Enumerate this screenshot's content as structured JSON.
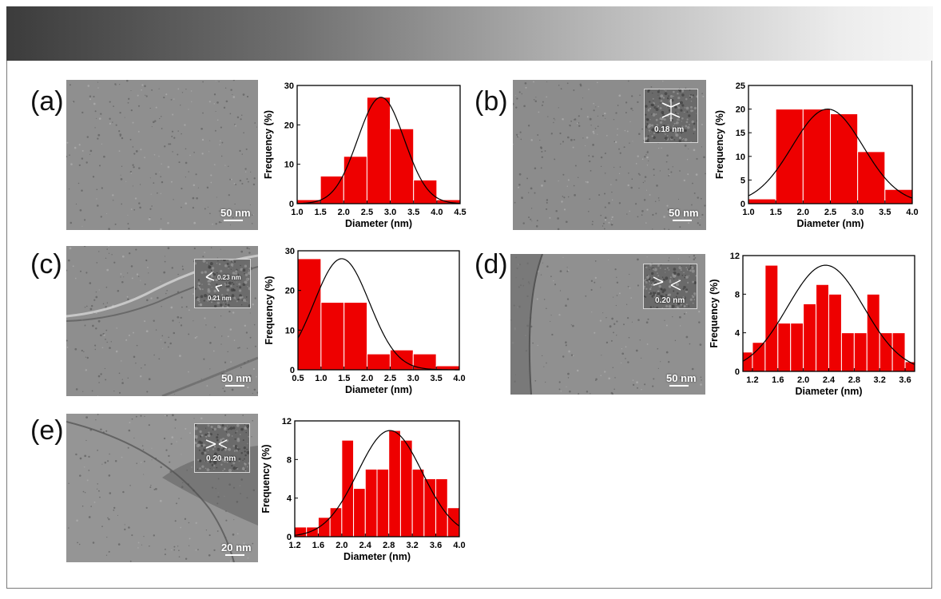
{
  "figure": {
    "panels": [
      {
        "label": "(a)",
        "micrograph": {
          "scale_text": "50 nm",
          "inset": null
        }
      },
      {
        "label": "(b)",
        "micrograph": {
          "scale_text": "50 nm",
          "inset": {
            "texts": [
              "0.18 nm"
            ]
          }
        }
      },
      {
        "label": "(c)",
        "micrograph": {
          "scale_text": "50 nm",
          "inset": {
            "texts": [
              "0.23 nm",
              "0.21 nm"
            ]
          }
        }
      },
      {
        "label": "(d)",
        "micrograph": {
          "scale_text": "50 nm",
          "inset": {
            "texts": [
              "0.20 nm"
            ]
          }
        }
      },
      {
        "label": "(e)",
        "micrograph": {
          "scale_text": "20 nm",
          "inset": {
            "texts": [
              "0.20 nm"
            ]
          }
        }
      }
    ]
  },
  "chart_data": [
    {
      "type": "bar",
      "panel": "(a)",
      "xlabel": "Diameter (nm)",
      "ylabel": "Frequency (%)",
      "xlim": [
        1.0,
        4.5
      ],
      "ylim": [
        0,
        30
      ],
      "xticks": [
        "1.0",
        "1.5",
        "2.0",
        "2.5",
        "3.0",
        "3.5",
        "4.0",
        "4.5"
      ],
      "yticks": [
        "0",
        "10",
        "20",
        "30"
      ],
      "bin_width": 0.5,
      "x": [
        1.25,
        1.75,
        2.25,
        2.75,
        3.25,
        3.75,
        4.25
      ],
      "values": [
        1,
        7,
        12,
        27,
        19,
        6,
        1
      ],
      "fit": {
        "type": "gaussian",
        "center": 2.8,
        "sigma": 0.5,
        "peak": 27
      }
    },
    {
      "type": "bar",
      "panel": "(b)",
      "xlabel": "Diameter (nm)",
      "ylabel": "Frequency (%)",
      "xlim": [
        1.0,
        4.0
      ],
      "ylim": [
        0,
        25
      ],
      "xticks": [
        "1.0",
        "1.5",
        "2.0",
        "2.5",
        "3.0",
        "3.5",
        "4.0"
      ],
      "yticks": [
        "0",
        "5",
        "10",
        "15",
        "20",
        "25"
      ],
      "bin_width": 0.5,
      "x": [
        1.25,
        1.75,
        2.25,
        2.75,
        3.25,
        3.75
      ],
      "values": [
        1,
        20,
        20,
        19,
        11,
        3
      ],
      "fit": {
        "type": "gaussian",
        "center": 2.45,
        "sigma": 0.65,
        "peak": 20
      }
    },
    {
      "type": "bar",
      "panel": "(c)",
      "xlabel": "Diameter (nm)",
      "ylabel": "Frequency (%)",
      "xlim": [
        0.5,
        4.0
      ],
      "ylim": [
        0,
        30
      ],
      "xticks": [
        "0.5",
        "1.0",
        "1.5",
        "2.0",
        "2.5",
        "3.0",
        "3.5",
        "4.0"
      ],
      "yticks": [
        "0",
        "10",
        "20",
        "30"
      ],
      "bin_width": 0.5,
      "x": [
        0.75,
        1.25,
        1.75,
        2.25,
        2.75,
        3.25,
        3.75
      ],
      "values": [
        28,
        17,
        17,
        4,
        5,
        4,
        1
      ],
      "fit": {
        "type": "gaussian",
        "center": 1.45,
        "sigma": 0.6,
        "peak": 28
      }
    },
    {
      "type": "bar",
      "panel": "(d)",
      "xlabel": "Diameter (nm)",
      "ylabel": "Frequency (%)",
      "xlim": [
        1.05,
        3.75
      ],
      "ylim": [
        0,
        12
      ],
      "xticks": [
        "1.2",
        "1.6",
        "2.0",
        "2.4",
        "2.8",
        "3.2",
        "3.6"
      ],
      "xtick_values": [
        1.2,
        1.6,
        2.0,
        2.4,
        2.8,
        3.2,
        3.6
      ],
      "yticks": [
        "0",
        "4",
        "8",
        "12"
      ],
      "bin_width": 0.2,
      "x": [
        1.1,
        1.3,
        1.5,
        1.7,
        1.9,
        2.1,
        2.3,
        2.5,
        2.7,
        2.9,
        3.1,
        3.3,
        3.5,
        3.7
      ],
      "values": [
        2,
        3,
        11,
        5,
        5,
        7,
        9,
        8,
        4,
        4,
        8,
        4,
        4,
        1
      ],
      "fit": {
        "type": "gaussian",
        "center": 2.35,
        "sigma": 0.6,
        "peak": 11
      }
    },
    {
      "type": "bar",
      "panel": "(e)",
      "xlabel": "Diameter (nm)",
      "ylabel": "Frequency (%)",
      "xlim": [
        1.2,
        4.0
      ],
      "ylim": [
        0,
        12
      ],
      "xticks": [
        "1.2",
        "1.6",
        "2.0",
        "2.4",
        "2.8",
        "3.2",
        "3.6",
        "4.0"
      ],
      "xtick_values": [
        1.2,
        1.6,
        2.0,
        2.4,
        2.8,
        3.2,
        3.6,
        4.0
      ],
      "yticks": [
        "0",
        "4",
        "8",
        "12"
      ],
      "bin_width": 0.2,
      "x": [
        1.3,
        1.5,
        1.7,
        1.9,
        2.1,
        2.3,
        2.5,
        2.7,
        2.9,
        3.1,
        3.3,
        3.5,
        3.7,
        3.9
      ],
      "values": [
        1,
        1,
        2,
        3,
        10,
        5,
        7,
        7,
        11,
        10,
        7,
        6,
        6,
        3
      ],
      "fit": {
        "type": "gaussian",
        "center": 2.82,
        "sigma": 0.55,
        "peak": 11
      }
    }
  ]
}
